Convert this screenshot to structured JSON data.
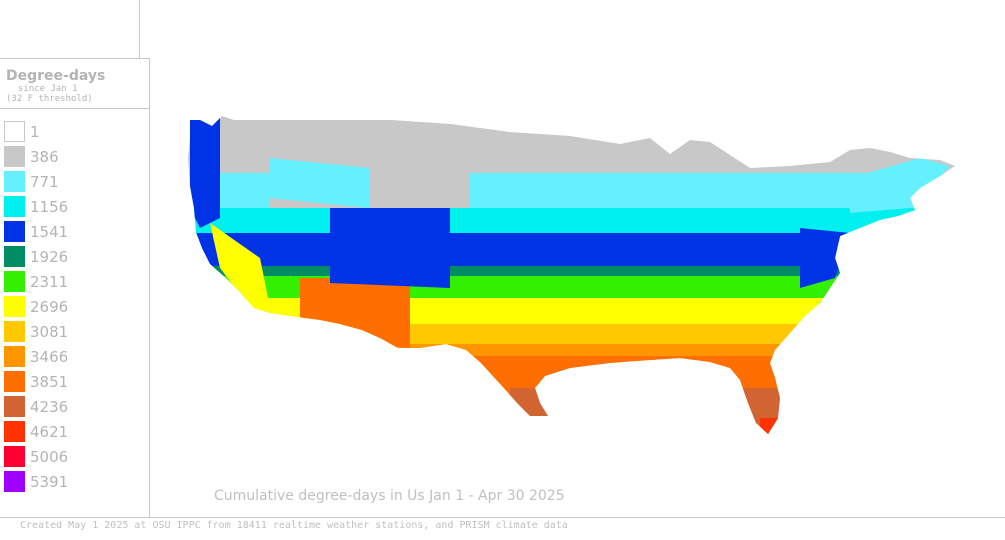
{
  "legend": {
    "title": "Degree-days",
    "subtitle1": "since Jan 1",
    "subtitle2": "(32 F threshold)",
    "items": [
      {
        "label": "1",
        "color": "#ffffff"
      },
      {
        "label": "386",
        "color": "#c8c8c8"
      },
      {
        "label": "771",
        "color": "#64f0ff"
      },
      {
        "label": "1156",
        "color": "#00f0f0"
      },
      {
        "label": "1541",
        "color": "#0032e6"
      },
      {
        "label": "1926",
        "color": "#008c64"
      },
      {
        "label": "2311",
        "color": "#32f000"
      },
      {
        "label": "2696",
        "color": "#ffff00"
      },
      {
        "label": "3081",
        "color": "#ffc800"
      },
      {
        "label": "3466",
        "color": "#ff9600"
      },
      {
        "label": "3851",
        "color": "#ff6e00"
      },
      {
        "label": "4236",
        "color": "#d26432"
      },
      {
        "label": "4621",
        "color": "#ff3200"
      },
      {
        "label": "5006",
        "color": "#ff0032"
      },
      {
        "label": "5391",
        "color": "#a000ff"
      }
    ]
  },
  "map": {
    "title": "Cumulative degree-days in Us  Jan 1 - Apr 30 2025",
    "credit": "Created May 1 2025 at OSU IPPC from 18411 realtime weather stations, and PRISM climate data"
  }
}
